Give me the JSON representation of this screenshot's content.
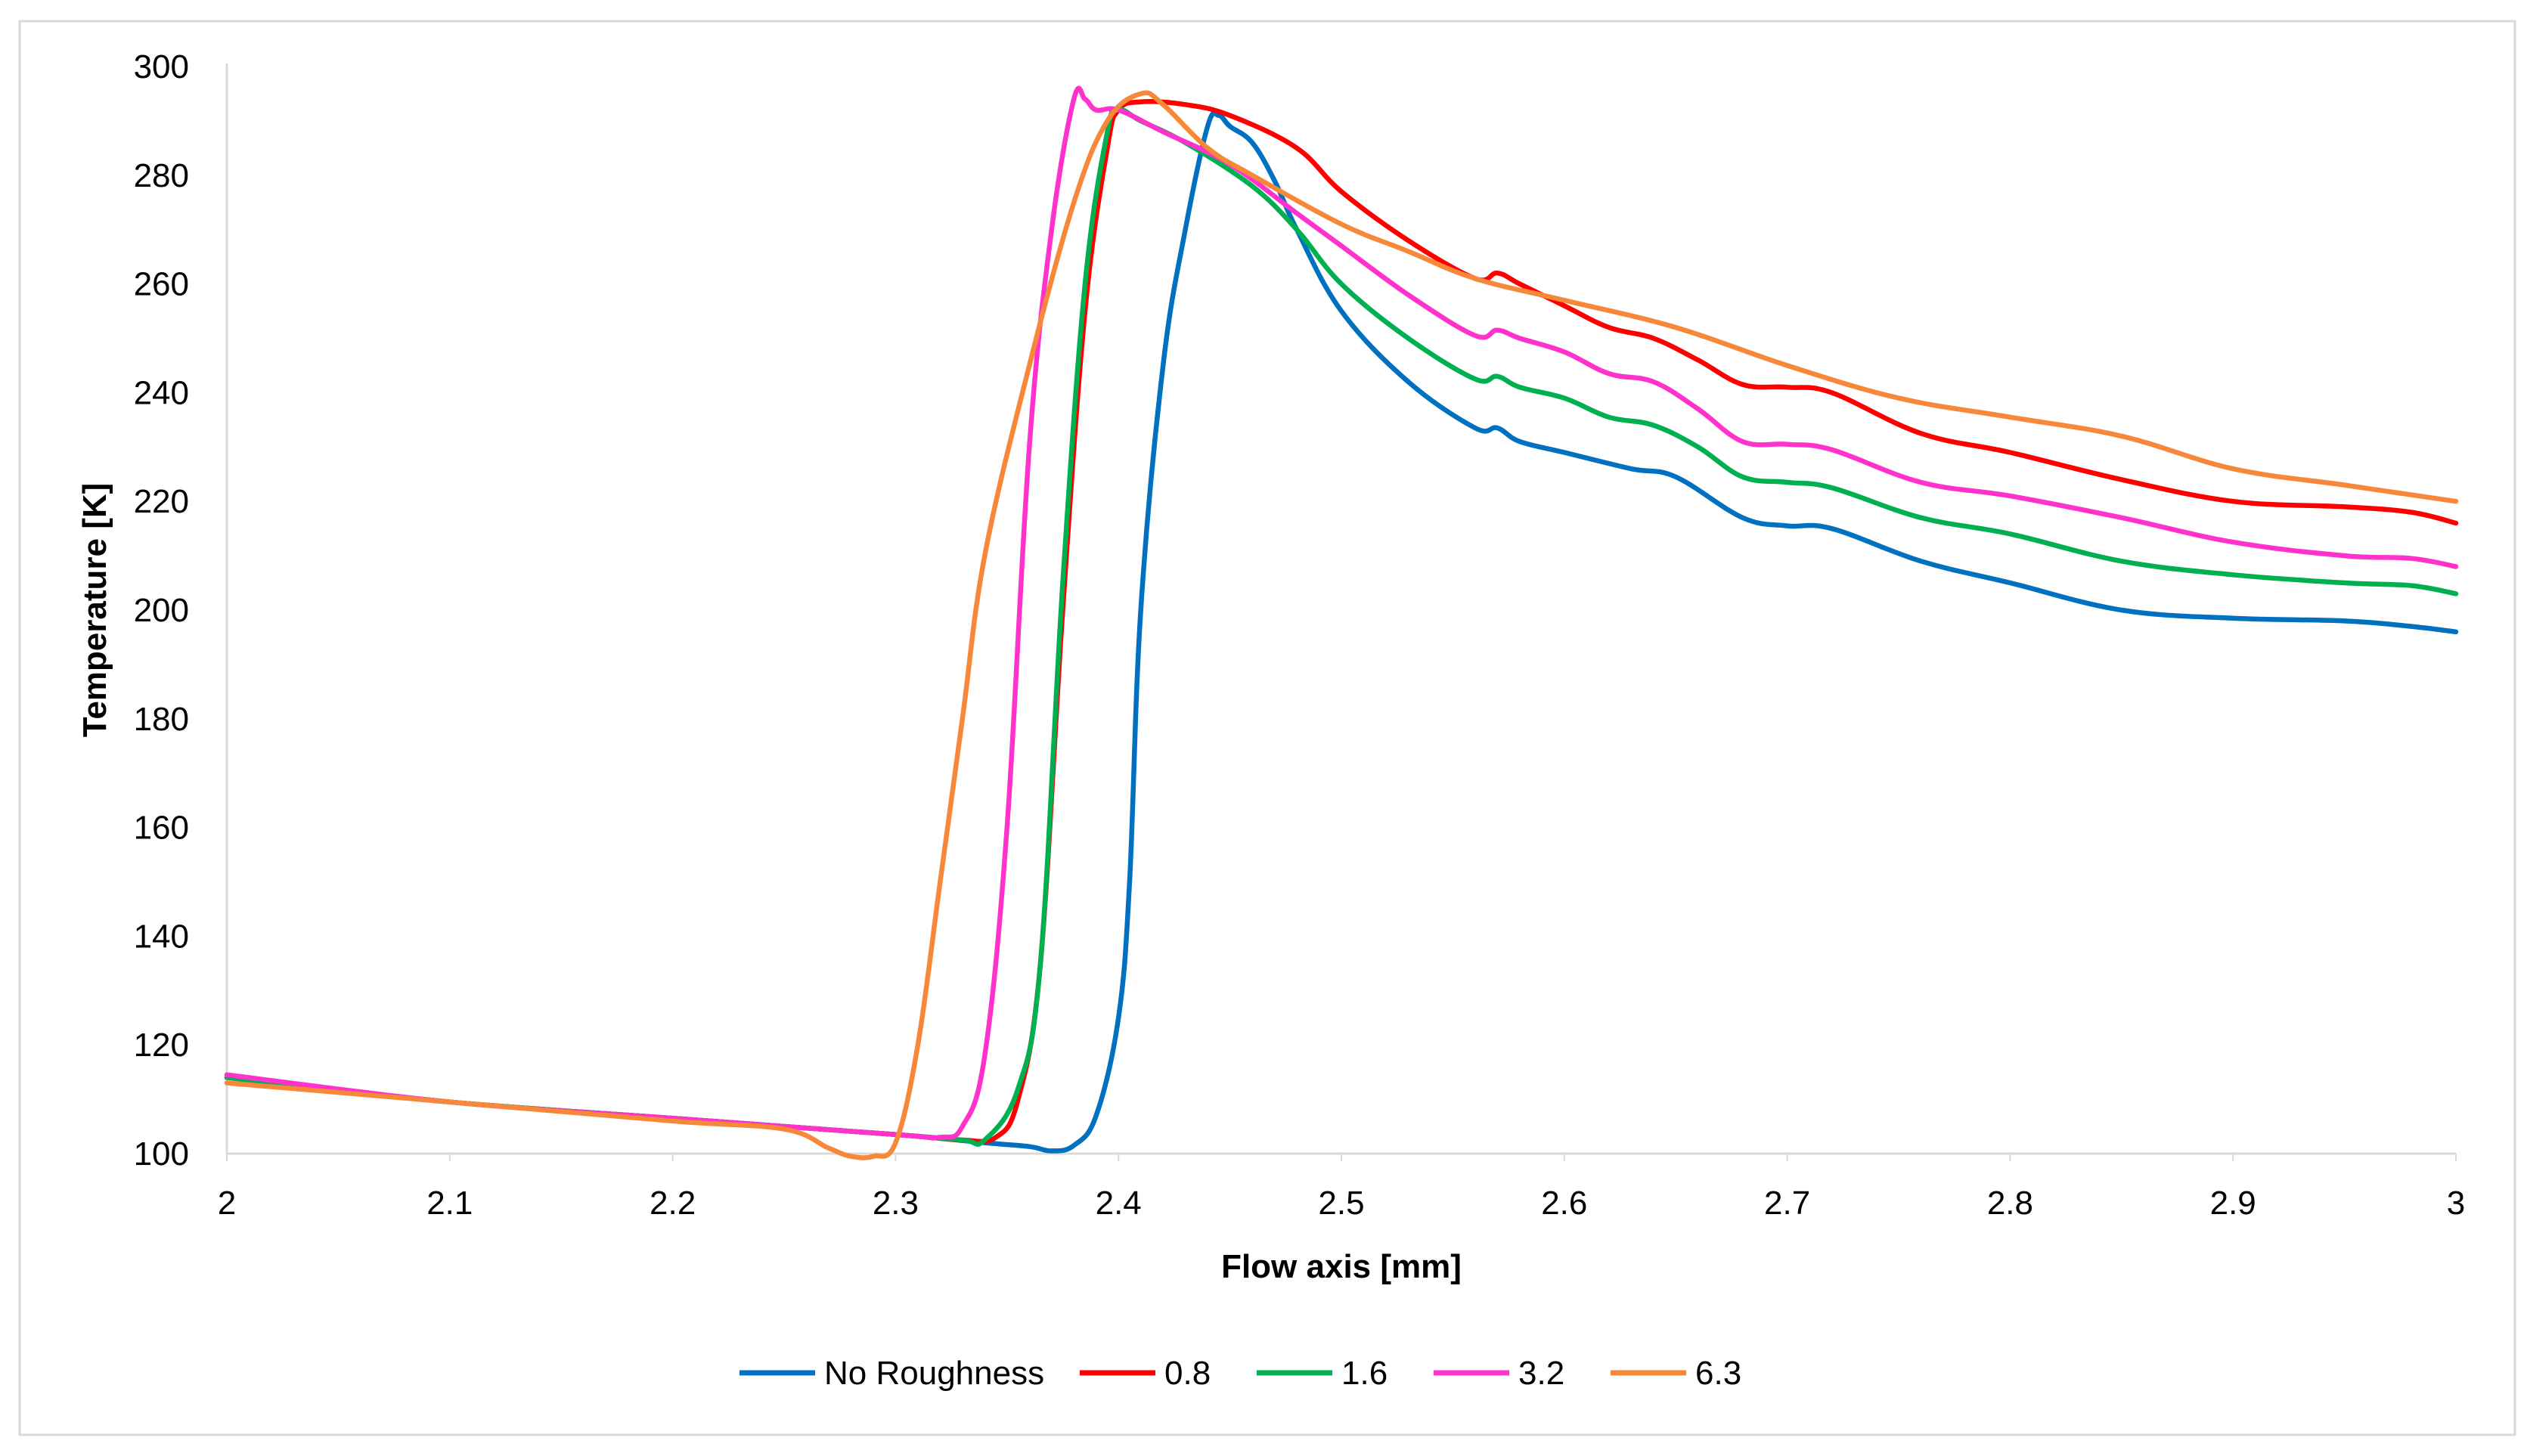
{
  "chart_data": {
    "type": "line",
    "title": "",
    "xlabel": "Flow axis [mm]",
    "ylabel": "Temperature [K]",
    "xlim": [
      2,
      3
    ],
    "ylim": [
      100,
      300
    ],
    "x_ticks": [
      "2",
      "2.1",
      "2.2",
      "2.3",
      "2.4",
      "2.5",
      "2.6",
      "2.7",
      "2.8",
      "2.9",
      "3"
    ],
    "y_ticks": [
      "100",
      "120",
      "140",
      "160",
      "180",
      "200",
      "220",
      "240",
      "260",
      "280",
      "300"
    ],
    "legend_position": "bottom",
    "series": [
      {
        "name": "No Roughness",
        "color": "#0070C0",
        "points": [
          [
            2.0,
            114
          ],
          [
            2.1,
            109.5
          ],
          [
            2.2,
            106.5
          ],
          [
            2.3,
            103.5
          ],
          [
            2.34,
            102
          ],
          [
            2.36,
            101.3
          ],
          [
            2.37,
            100.5
          ],
          [
            2.38,
            101.5
          ],
          [
            2.39,
            107
          ],
          [
            2.4,
            125
          ],
          [
            2.405,
            150
          ],
          [
            2.41,
            200
          ],
          [
            2.42,
            245
          ],
          [
            2.43,
            270
          ],
          [
            2.44,
            289
          ],
          [
            2.445,
            291
          ],
          [
            2.45,
            289
          ],
          [
            2.46,
            286
          ],
          [
            2.47,
            279
          ],
          [
            2.48,
            270
          ],
          [
            2.5,
            255
          ],
          [
            2.53,
            242
          ],
          [
            2.56,
            233.5
          ],
          [
            2.57,
            233.5
          ],
          [
            2.58,
            231
          ],
          [
            2.6,
            229
          ],
          [
            2.63,
            226
          ],
          [
            2.65,
            224.5
          ],
          [
            2.68,
            217
          ],
          [
            2.7,
            215.5
          ],
          [
            2.72,
            215
          ],
          [
            2.76,
            209
          ],
          [
            2.8,
            205
          ],
          [
            2.85,
            200
          ],
          [
            2.9,
            198.5
          ],
          [
            2.95,
            198
          ],
          [
            2.98,
            197
          ],
          [
            3.0,
            196
          ]
        ]
      },
      {
        "name": "0.8",
        "color": "#FF0000",
        "points": [
          [
            2.0,
            114
          ],
          [
            2.1,
            109.5
          ],
          [
            2.2,
            106.5
          ],
          [
            2.3,
            103.5
          ],
          [
            2.33,
            102.5
          ],
          [
            2.345,
            103
          ],
          [
            2.355,
            110
          ],
          [
            2.365,
            135
          ],
          [
            2.375,
            200
          ],
          [
            2.385,
            255
          ],
          [
            2.395,
            285
          ],
          [
            2.4,
            292
          ],
          [
            2.41,
            293.5
          ],
          [
            2.43,
            293
          ],
          [
            2.45,
            291
          ],
          [
            2.48,
            285
          ],
          [
            2.5,
            277
          ],
          [
            2.53,
            268
          ],
          [
            2.56,
            261
          ],
          [
            2.57,
            262
          ],
          [
            2.58,
            260
          ],
          [
            2.6,
            256
          ],
          [
            2.62,
            252
          ],
          [
            2.64,
            250
          ],
          [
            2.66,
            246
          ],
          [
            2.68,
            241.5
          ],
          [
            2.7,
            241
          ],
          [
            2.72,
            240
          ],
          [
            2.76,
            232.5
          ],
          [
            2.8,
            229
          ],
          [
            2.85,
            224
          ],
          [
            2.9,
            220
          ],
          [
            2.95,
            219
          ],
          [
            2.98,
            218
          ],
          [
            3.0,
            216
          ]
        ]
      },
      {
        "name": "1.6",
        "color": "#00B050",
        "points": [
          [
            2.0,
            114
          ],
          [
            2.1,
            109.5
          ],
          [
            2.2,
            106.5
          ],
          [
            2.3,
            103.5
          ],
          [
            2.33,
            102.5
          ],
          [
            2.34,
            102.5
          ],
          [
            2.355,
            112
          ],
          [
            2.365,
            135
          ],
          [
            2.375,
            205
          ],
          [
            2.385,
            260
          ],
          [
            2.395,
            288
          ],
          [
            2.4,
            292
          ],
          [
            2.41,
            290
          ],
          [
            2.43,
            286
          ],
          [
            2.46,
            278
          ],
          [
            2.48,
            270
          ],
          [
            2.5,
            260
          ],
          [
            2.53,
            250
          ],
          [
            2.56,
            242.5
          ],
          [
            2.57,
            243
          ],
          [
            2.58,
            241
          ],
          [
            2.6,
            239
          ],
          [
            2.62,
            235.5
          ],
          [
            2.64,
            234
          ],
          [
            2.66,
            230
          ],
          [
            2.68,
            224.5
          ],
          [
            2.7,
            223.5
          ],
          [
            2.72,
            222.5
          ],
          [
            2.76,
            217
          ],
          [
            2.8,
            214
          ],
          [
            2.85,
            209
          ],
          [
            2.9,
            206.5
          ],
          [
            2.95,
            205
          ],
          [
            2.98,
            204.5
          ],
          [
            3.0,
            203
          ]
        ]
      },
      {
        "name": "3.2",
        "color": "#FF33CC",
        "points": [
          [
            2.0,
            114.5
          ],
          [
            2.1,
            109.5
          ],
          [
            2.2,
            106.5
          ],
          [
            2.3,
            103.5
          ],
          [
            2.32,
            103
          ],
          [
            2.33,
            105
          ],
          [
            2.34,
            118
          ],
          [
            2.35,
            160
          ],
          [
            2.36,
            230
          ],
          [
            2.37,
            270
          ],
          [
            2.38,
            294
          ],
          [
            2.385,
            294
          ],
          [
            2.39,
            292
          ],
          [
            2.4,
            292
          ],
          [
            2.42,
            288
          ],
          [
            2.45,
            282
          ],
          [
            2.48,
            273
          ],
          [
            2.5,
            267
          ],
          [
            2.53,
            258
          ],
          [
            2.56,
            250.5
          ],
          [
            2.57,
            251.5
          ],
          [
            2.58,
            250
          ],
          [
            2.6,
            247.5
          ],
          [
            2.62,
            243.5
          ],
          [
            2.64,
            242
          ],
          [
            2.66,
            237
          ],
          [
            2.68,
            231
          ],
          [
            2.7,
            230.5
          ],
          [
            2.72,
            229.5
          ],
          [
            2.76,
            223.5
          ],
          [
            2.8,
            221
          ],
          [
            2.85,
            217
          ],
          [
            2.9,
            212.5
          ],
          [
            2.95,
            210
          ],
          [
            2.98,
            209.5
          ],
          [
            3.0,
            208
          ]
        ]
      },
      {
        "name": "6.3",
        "color": "#F7883A",
        "points": [
          [
            2.0,
            113
          ],
          [
            2.1,
            109.5
          ],
          [
            2.2,
            106
          ],
          [
            2.25,
            104.5
          ],
          [
            2.27,
            101
          ],
          [
            2.28,
            99.5
          ],
          [
            2.29,
            99.5
          ],
          [
            2.3,
            102
          ],
          [
            2.31,
            120
          ],
          [
            2.32,
            150
          ],
          [
            2.33,
            180
          ],
          [
            2.34,
            210
          ],
          [
            2.36,
            245
          ],
          [
            2.38,
            275
          ],
          [
            2.395,
            290
          ],
          [
            2.41,
            295
          ],
          [
            2.42,
            293
          ],
          [
            2.44,
            285
          ],
          [
            2.46,
            280
          ],
          [
            2.5,
            271
          ],
          [
            2.53,
            266
          ],
          [
            2.56,
            261
          ],
          [
            2.6,
            257
          ],
          [
            2.65,
            252
          ],
          [
            2.7,
            245
          ],
          [
            2.75,
            239
          ],
          [
            2.8,
            235.5
          ],
          [
            2.85,
            232
          ],
          [
            2.9,
            226
          ],
          [
            2.95,
            223
          ],
          [
            3.0,
            220
          ]
        ]
      }
    ]
  }
}
